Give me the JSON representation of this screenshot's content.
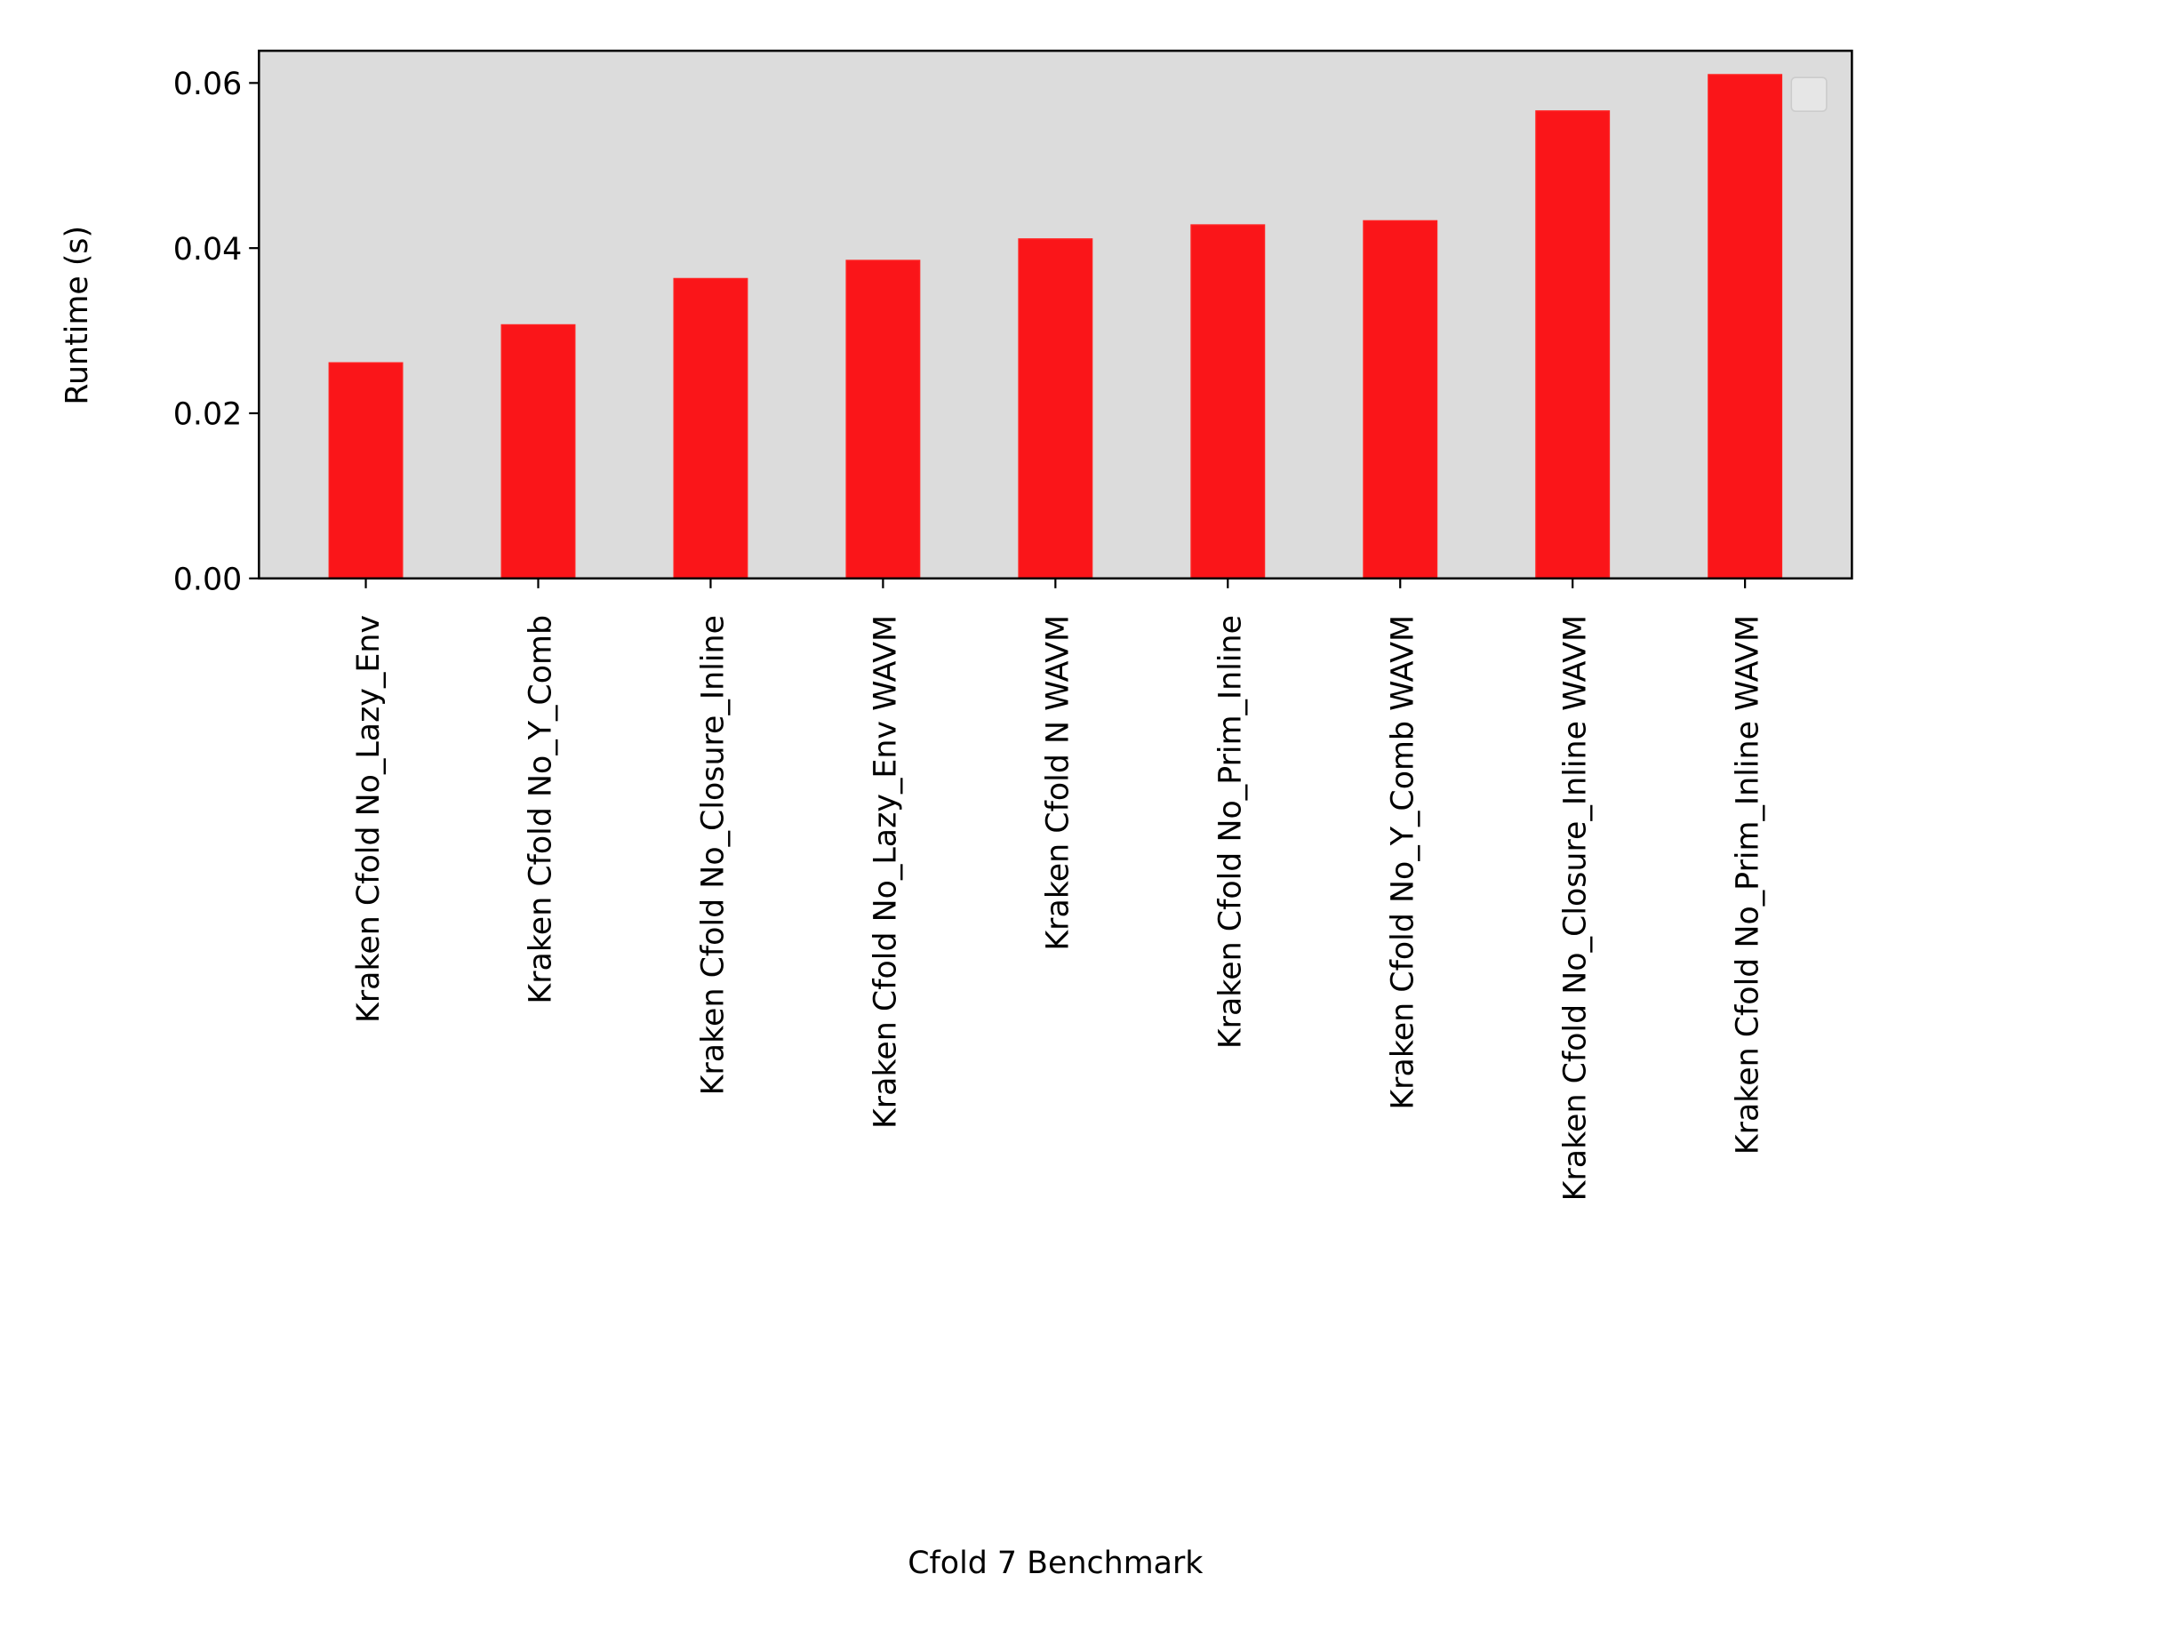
{
  "chart_data": {
    "type": "bar",
    "title": "",
    "xlabel": "Cfold 7 Benchmark",
    "ylabel": "Runtime (s)",
    "categories": [
      "Kraken Cfold No_Lazy_Env",
      "Kraken Cfold No_Y_Comb",
      "Kraken Cfold No_Closure_Inline",
      "Kraken Cfold No_Lazy_Env WAVM",
      "Kraken Cfold N WAVM",
      "Kraken Cfold No_Prim_Inline",
      "Kraken Cfold No_Y_Comb WAVM",
      "Kraken Cfold No_Closure_Inline WAVM",
      "Kraken Cfold No_Prim_Inline WAVM"
    ],
    "values": [
      0.0261,
      0.0307,
      0.0363,
      0.0385,
      0.0411,
      0.0428,
      0.0433,
      0.0566,
      0.061
    ],
    "ylim": [
      0,
      0.0639
    ],
    "yticks": [
      "0.00",
      "0.02",
      "0.04",
      "0.06"
    ],
    "ytick_values": [
      0,
      0.02,
      0.04,
      0.06
    ],
    "grid": false,
    "legend": {
      "placement": "top-right",
      "entries": []
    },
    "colors": {
      "bar": "#fa1519",
      "plot_background": "#dcdcdc"
    }
  }
}
